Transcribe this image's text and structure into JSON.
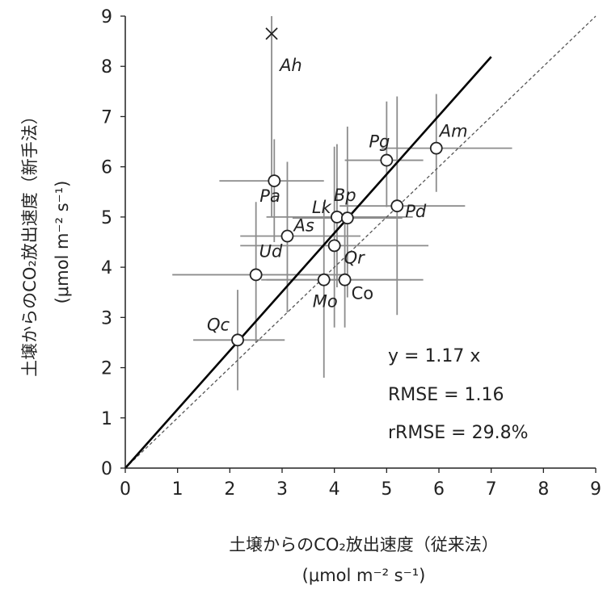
{
  "chart_data": {
    "type": "scatter",
    "xlabel": "土壌からのCO₂放出速度（従来法）",
    "xunit": "(μmol m⁻² s⁻¹)",
    "ylabel": "土壌からのCO₂放出速度（新手法）",
    "yunit": "(μmol m⁻² s⁻¹)",
    "xlim": [
      0,
      9
    ],
    "ylim": [
      0,
      9
    ],
    "xticks": [
      "0",
      "1",
      "2",
      "3",
      "4",
      "5",
      "6",
      "7",
      "8",
      "9"
    ],
    "yticks": [
      "0",
      "1",
      "2",
      "3",
      "4",
      "5",
      "6",
      "7",
      "8",
      "9"
    ],
    "grid": false,
    "points": [
      {
        "label": "Ah",
        "x": 2.8,
        "y": 8.65,
        "xmin": 2.8,
        "xmax": 2.8,
        "ymin": 5.0,
        "ymax": 9.0,
        "marker": "x",
        "italic": true
      },
      {
        "label": "Am",
        "x": 5.95,
        "y": 6.37,
        "xmin": 4.9,
        "xmax": 7.4,
        "ymin": 5.5,
        "ymax": 7.45,
        "marker": "o",
        "italic": true
      },
      {
        "label": "Pg",
        "x": 5.0,
        "y": 6.13,
        "xmin": 4.2,
        "xmax": 5.7,
        "ymin": 5.2,
        "ymax": 7.3,
        "marker": "o",
        "italic": true
      },
      {
        "label": "Pa",
        "x": 2.85,
        "y": 5.72,
        "xmin": 1.8,
        "xmax": 3.8,
        "ymin": 4.5,
        "ymax": 6.55,
        "marker": "o",
        "italic": true
      },
      {
        "label": "Pd",
        "x": 5.2,
        "y": 5.22,
        "xmin": 4.1,
        "xmax": 6.5,
        "ymin": 3.05,
        "ymax": 7.4,
        "marker": "o",
        "italic": true
      },
      {
        "label": "Bp",
        "x": 4.05,
        "y": 5.0,
        "xmin": 2.7,
        "xmax": 5.5,
        "ymin": 3.6,
        "ymax": 6.45,
        "marker": "o",
        "italic": true
      },
      {
        "label": "Lk",
        "x": 4.25,
        "y": 4.98,
        "xmin": 3.2,
        "xmax": 5.3,
        "ymin": 3.4,
        "ymax": 6.8,
        "marker": "o",
        "italic": true
      },
      {
        "label": "As",
        "x": 3.1,
        "y": 4.62,
        "xmin": 2.2,
        "xmax": 4.5,
        "ymin": 3.1,
        "ymax": 6.1,
        "marker": "o",
        "italic": true
      },
      {
        "label": "Qr",
        "x": 4.0,
        "y": 4.43,
        "xmin": 2.2,
        "xmax": 5.8,
        "ymin": 2.8,
        "ymax": 6.4,
        "marker": "o",
        "italic": true
      },
      {
        "label": "Ud",
        "x": 2.5,
        "y": 3.85,
        "xmin": 0.9,
        "xmax": 4.2,
        "ymin": 2.5,
        "ymax": 5.3,
        "marker": "o",
        "italic": true
      },
      {
        "label": "Co",
        "x": 4.2,
        "y": 3.75,
        "xmin": 2.7,
        "xmax": 5.7,
        "ymin": 2.8,
        "ymax": 5.1,
        "marker": "o",
        "italic": false
      },
      {
        "label": "Mo",
        "x": 3.8,
        "y": 3.75,
        "xmin": 2.6,
        "xmax": 5.2,
        "ymin": 1.8,
        "ymax": 5.3,
        "marker": "o",
        "italic": true
      },
      {
        "label": "Qc",
        "x": 2.15,
        "y": 2.55,
        "xmin": 1.3,
        "xmax": 3.05,
        "ymin": 1.55,
        "ymax": 3.55,
        "marker": "o",
        "italic": true
      }
    ],
    "fit_line": {
      "slope": 1.17,
      "x_end": 7.0
    },
    "reference_line": {
      "slope": 1.0
    },
    "annotations": [
      "y = 1.17 x",
      "RMSE = 1.16",
      "rRMSE = 29.8%"
    ]
  }
}
